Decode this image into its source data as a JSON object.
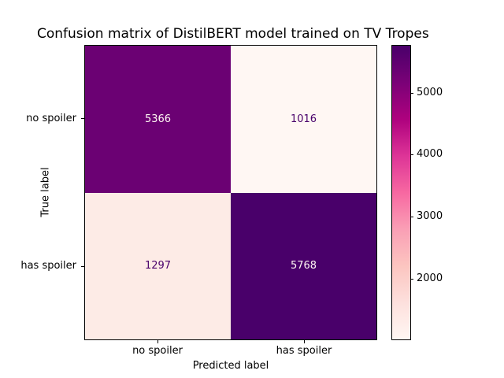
{
  "chart_data": {
    "type": "heatmap",
    "title": "Confusion matrix of DistilBERT model trained on TV Tropes",
    "xlabel": "Predicted label",
    "ylabel": "True label",
    "x_categories": [
      "no spoiler",
      "has spoiler"
    ],
    "y_categories": [
      "no spoiler",
      "has spoiler"
    ],
    "values": [
      [
        5366,
        1016
      ],
      [
        1297,
        5768
      ]
    ],
    "vmin": 1016,
    "vmax": 5768,
    "colormap": "RdPu",
    "colorbar_ticks": [
      2000,
      3000,
      4000,
      5000
    ],
    "colorbar_position": "right",
    "grid": false
  },
  "cell_colors": {
    "r0c0": {
      "bg": "#6b0173",
      "fg": "#fff7f3"
    },
    "r0c1": {
      "bg": "#fff7f3",
      "fg": "#49006a"
    },
    "r1c0": {
      "bg": "#fdebe6",
      "fg": "#49006a"
    },
    "r1c1": {
      "bg": "#49006a",
      "fg": "#fff7f3"
    }
  },
  "colorbar": {
    "gradient": [
      "#fff7f3 0%",
      "#fde0dd 12.5%",
      "#fcc5c0 25%",
      "#fa9fb5 37.5%",
      "#f768a1 50%",
      "#dd3497 62.5%",
      "#ae017e 75%",
      "#7a0177 87.5%",
      "#49006a 100%"
    ]
  }
}
